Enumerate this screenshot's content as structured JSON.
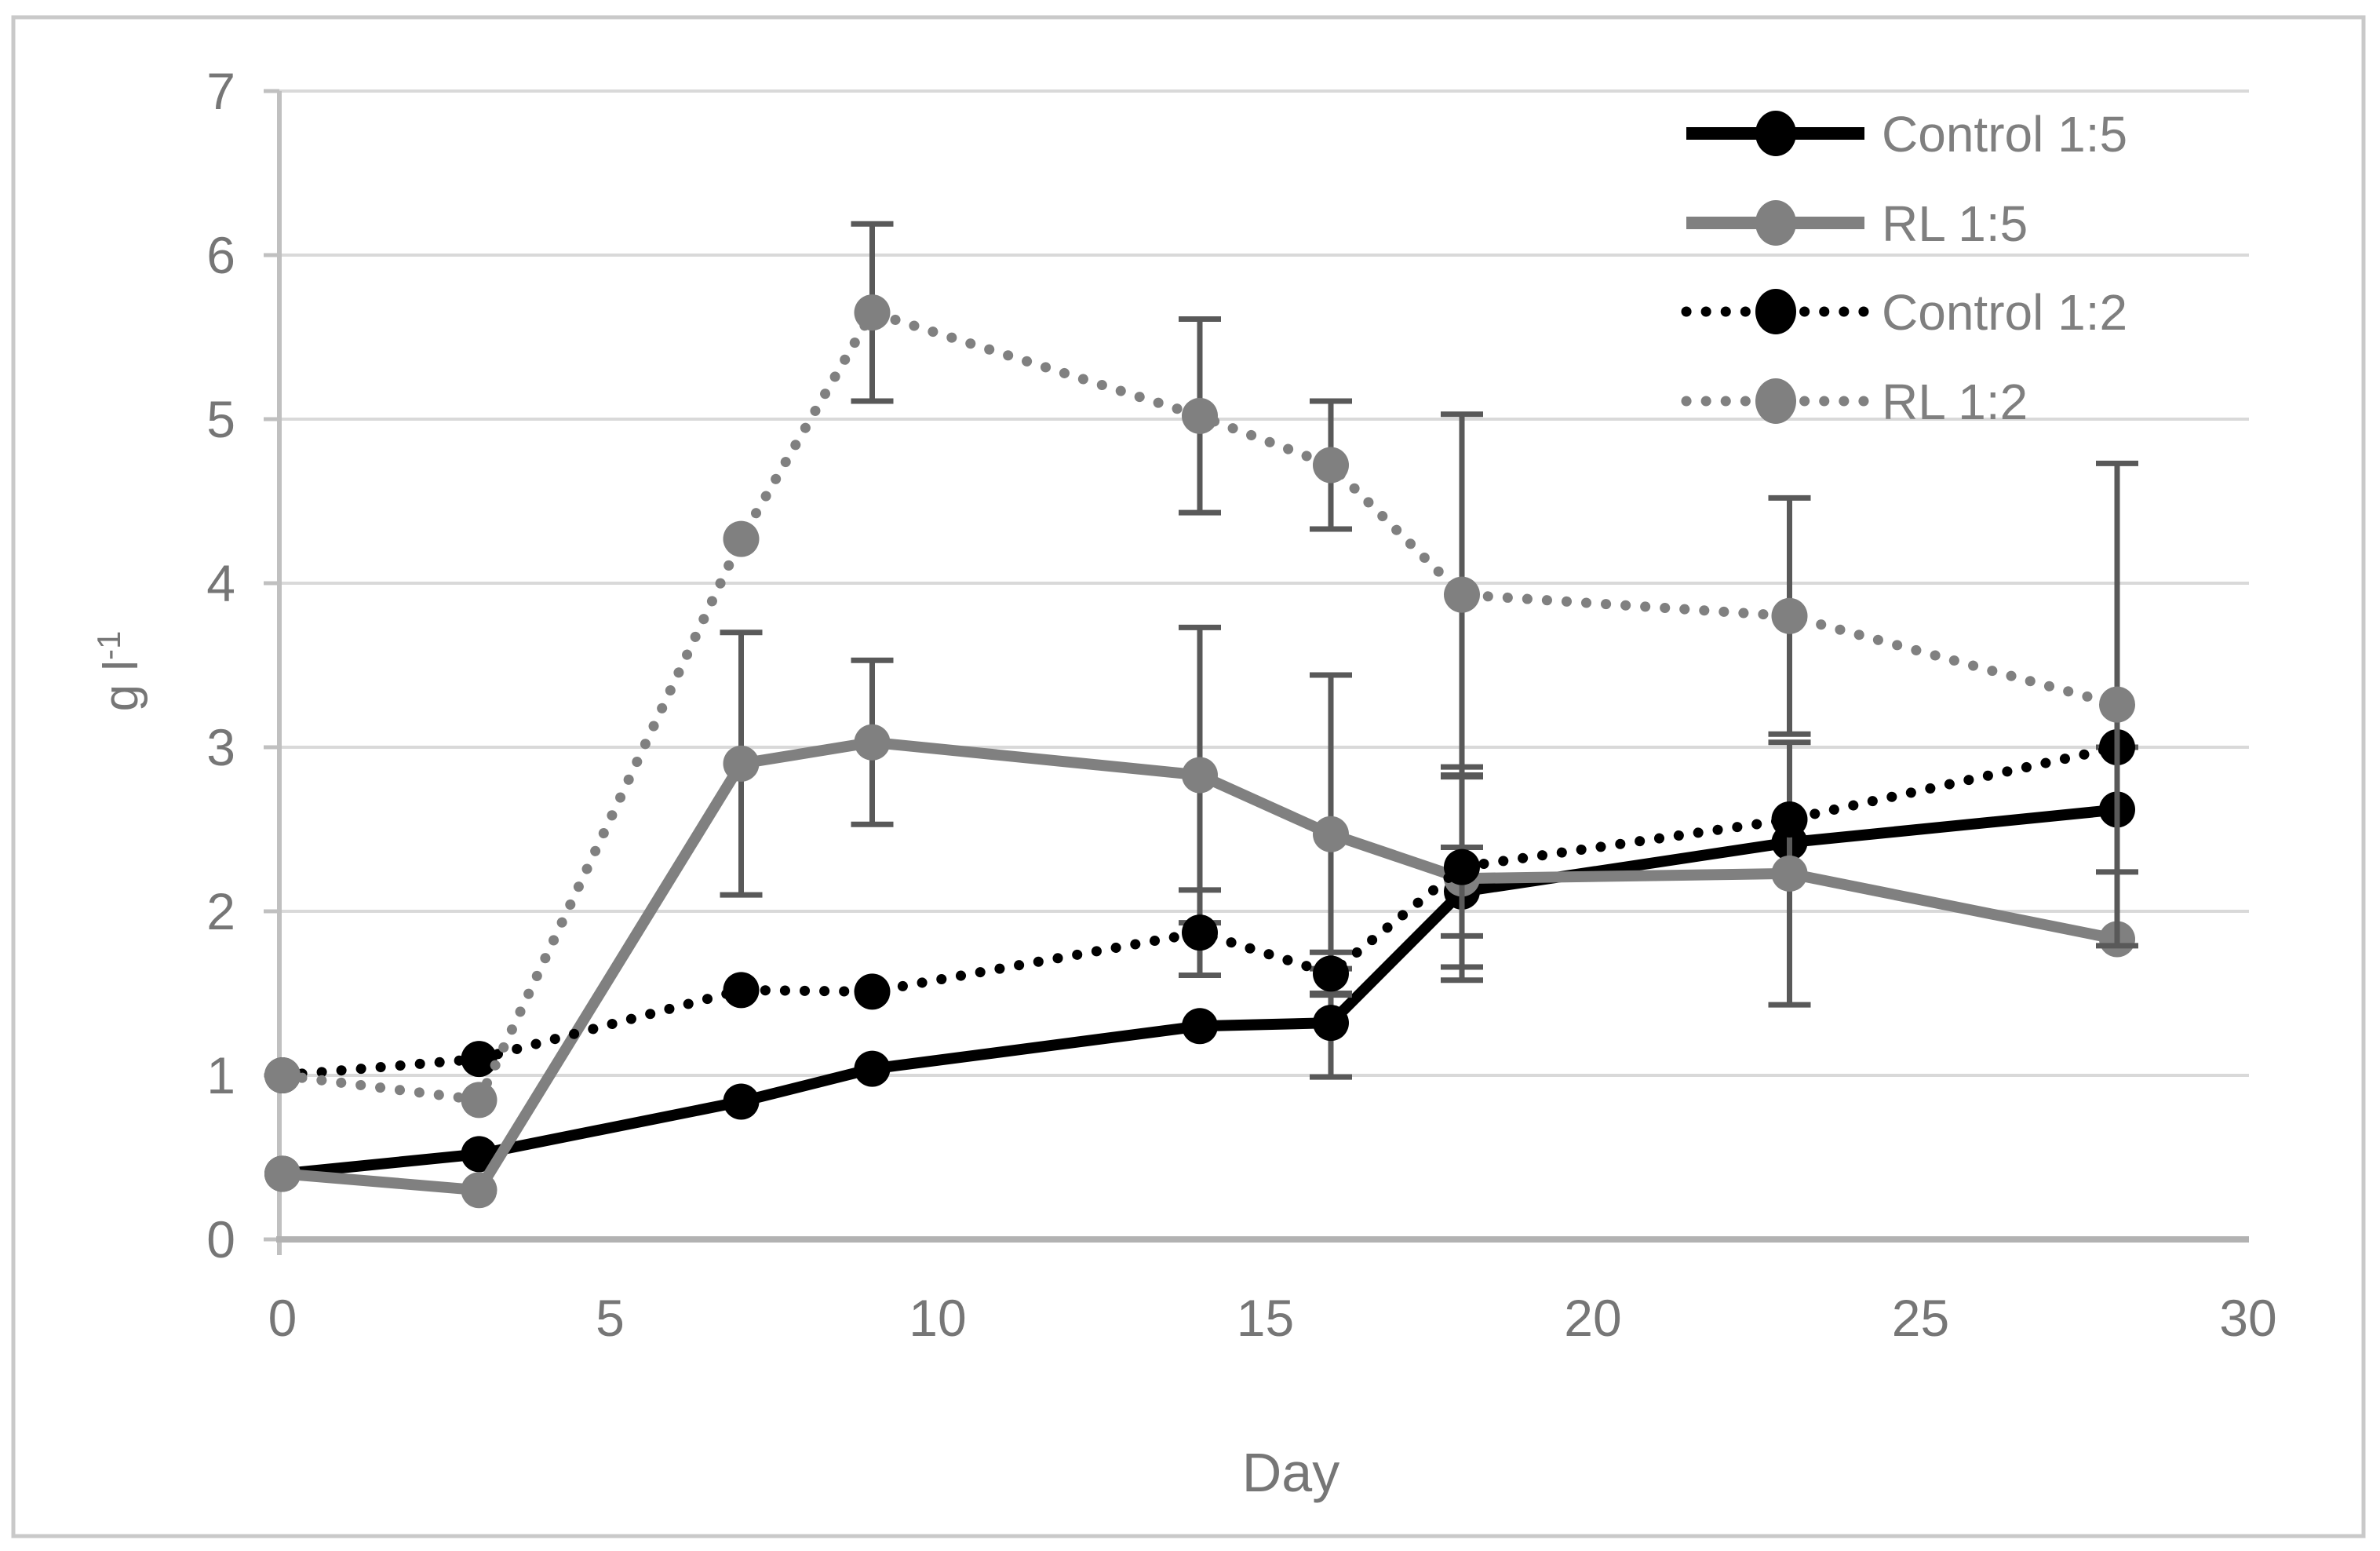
{
  "figure": {
    "background": "#ffffff",
    "border_color": "#c9c9c9",
    "gridline_color": "#d9d9d9",
    "y_axis_line_color": "#c0c0c0",
    "x_axis_line_color": "#b2b2b2",
    "tick_label_color": "#767676",
    "legend_text_color": "#7f7f7f",
    "error_bar_color": "#595959",
    "series_black_color": "#000000",
    "series_gray_color": "#808080"
  },
  "chart_data": {
    "type": "line",
    "title": "",
    "xlabel": "Day",
    "ylabel": "g l-1",
    "ylabel_main": "g l",
    "ylabel_sup": "-1",
    "xlim": [
      0,
      30
    ],
    "ylim": [
      0,
      7
    ],
    "x_ticks": [
      0,
      5,
      10,
      15,
      20,
      25,
      30
    ],
    "y_ticks": [
      0,
      1,
      2,
      3,
      4,
      5,
      6,
      7
    ],
    "grid": "horizontal",
    "legend_position": "top-right",
    "error_bars": true,
    "x": [
      0,
      3,
      7,
      9,
      14,
      16,
      18,
      23,
      28
    ],
    "series": [
      {
        "name": "Control 1:5",
        "color": "#000000",
        "line_style": "solid",
        "marker": "circle",
        "values": [
          0.4,
          0.52,
          0.84,
          1.04,
          1.3,
          1.32,
          2.12,
          2.42,
          2.62
        ],
        "errors": [
          0,
          0,
          0,
          0,
          0,
          0.33,
          0.27,
          0,
          0.38
        ]
      },
      {
        "name": "RL 1:5",
        "color": "#808080",
        "line_style": "solid",
        "marker": "circle",
        "values": [
          0.4,
          0.3,
          2.9,
          3.03,
          2.83,
          2.47,
          2.2,
          2.23,
          1.83
        ],
        "errors": [
          0,
          0,
          0.8,
          0.5,
          0.9,
          0.97,
          0.62,
          0.8,
          0
        ]
      },
      {
        "name": "Control 1:2",
        "color": "#000000",
        "line_style": "dotted",
        "marker": "circle",
        "values": [
          1.0,
          1.1,
          1.52,
          1.51,
          1.87,
          1.62,
          2.27,
          2.56,
          3.0
        ],
        "errors": [
          0,
          0,
          0,
          0,
          0.26,
          0.13,
          0.61,
          0,
          0
        ]
      },
      {
        "name": "RL 1:2",
        "color": "#808080",
        "line_style": "dotted",
        "marker": "circle",
        "values": [
          1.0,
          0.85,
          4.27,
          5.65,
          5.02,
          4.72,
          3.93,
          3.8,
          3.26
        ],
        "errors": [
          0,
          0,
          0,
          0.54,
          0.59,
          0.39,
          1.1,
          0.72,
          1.47
        ]
      }
    ]
  }
}
